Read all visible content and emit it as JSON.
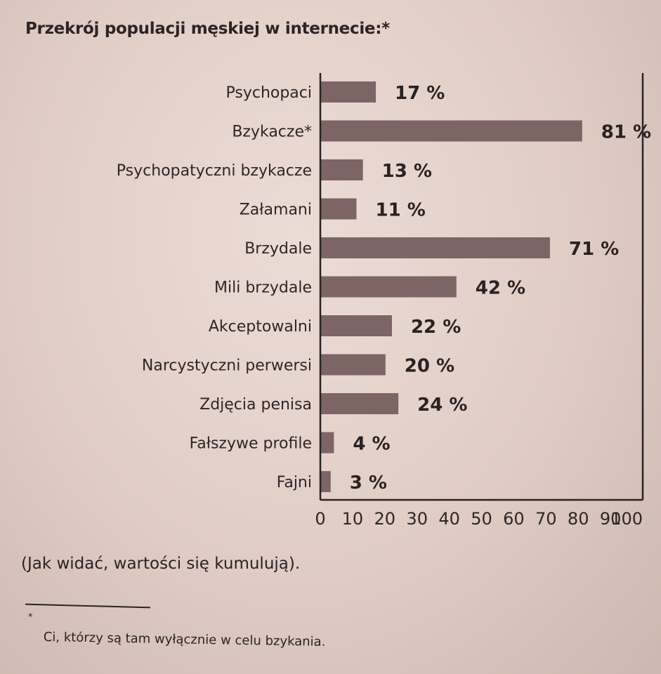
{
  "chart_data": {
    "type": "bar",
    "orientation": "horizontal",
    "title": "Przekrój populacji męskiej w internecie:*",
    "categories": [
      "Psychopaci",
      "Bzykacze*",
      "Psychopatyczni bzykacze",
      "Załamani",
      "Brzydale",
      "Mili brzydale",
      "Akceptowalni",
      "Narcystyczni perwersi",
      "Zdjęcia penisa",
      "Fałszywe profile",
      "Fajni"
    ],
    "values": [
      17,
      81,
      13,
      11,
      71,
      42,
      22,
      20,
      24,
      4,
      3
    ],
    "value_labels": [
      "17 %",
      "81 %",
      "13 %",
      "11 %",
      "71 %",
      "42 %",
      "22 %",
      "20 %",
      "24 %",
      "4 %",
      "3 %"
    ],
    "x_ticks": [
      "0",
      "10",
      "20",
      "30",
      "40",
      "50",
      "60",
      "70",
      "80",
      "90",
      "100"
    ],
    "xlim": [
      0,
      100
    ],
    "xlabel": "",
    "ylabel": "",
    "grid": false,
    "bar_color": "#7d6565"
  },
  "note": "(Jak widać, wartości się kumulują).",
  "footnote": {
    "mark": "*",
    "text": "Ci, którzy są tam wyłącznie w celu bzykania."
  }
}
